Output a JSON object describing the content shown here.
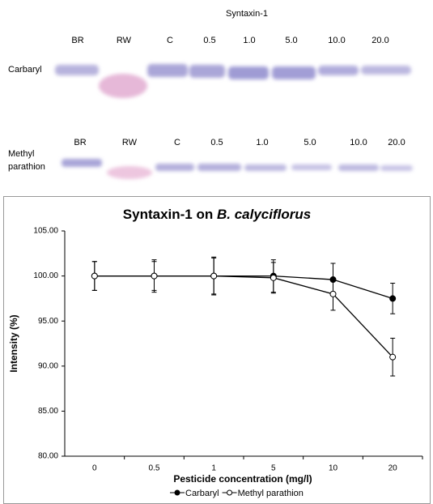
{
  "blot": {
    "title": "Syntaxin-1",
    "lanes_top": [
      "BR",
      "RW",
      "C",
      "0.5",
      "1.0",
      "5.0",
      "10.0",
      "20.0"
    ],
    "lanes_bottom": [
      "BR",
      "RW",
      "C",
      "0.5",
      "1.0",
      "5.0",
      "10.0",
      "20.0"
    ],
    "row_top": "Carbaryl",
    "row_bottom": [
      "Methyl",
      "parathion"
    ]
  },
  "chart_data": {
    "type": "line",
    "title": "Syntaxin-1 on",
    "title_italic": "B. calyciflorus",
    "xlabel": "Pesticide concentration (mg/l)",
    "ylabel": "Intensity (%)",
    "categories": [
      "0",
      "0.5",
      "1",
      "5",
      "10",
      "20"
    ],
    "ylim": [
      80,
      105
    ],
    "yticks": [
      {
        "value": 80,
        "label": "80.00"
      },
      {
        "value": 85,
        "label": "85.00"
      },
      {
        "value": 90,
        "label": "90.00"
      },
      {
        "value": 95,
        "label": "95.00"
      },
      {
        "value": 100,
        "label": "100.00"
      },
      {
        "value": 105,
        "label": "105.00"
      }
    ],
    "series": [
      {
        "name": "Carbaryl",
        "color": "#000000",
        "marker_fill": "#000000",
        "values": [
          100,
          100,
          100,
          100,
          99.6,
          97.5
        ],
        "errors": [
          1.6,
          1.8,
          2.0,
          1.8,
          1.8,
          1.7
        ]
      },
      {
        "name": "Methyl parathion",
        "color": "#000000",
        "marker_fill": "#ffffff",
        "values": [
          100,
          100,
          100,
          99.8,
          98,
          91
        ],
        "errors": [
          1.6,
          1.6,
          2.1,
          1.7,
          1.8,
          2.1
        ]
      }
    ]
  }
}
